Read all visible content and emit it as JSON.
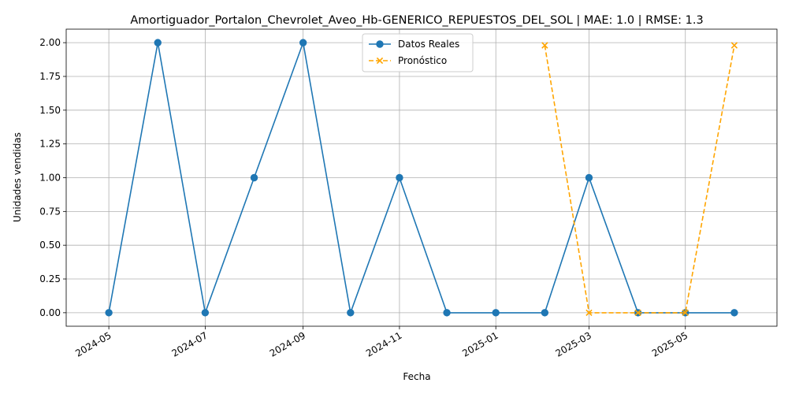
{
  "chart_data": {
    "type": "line",
    "title": "Amortiguador_Portalon_Chevrolet_Aveo_Hb-GENERICO_REPUESTOS_DEL_SOL | MAE: 1.0 | RMSE: 1.3",
    "xlabel": "Fecha",
    "ylabel": "Unidades vendidas",
    "xlim": [
      "2024-04-04",
      "2025-06-28"
    ],
    "ylim": [
      -0.1,
      2.1
    ],
    "x_ticks": [
      "2024-05",
      "2024-07",
      "2024-09",
      "2024-11",
      "2025-01",
      "2025-03",
      "2025-05"
    ],
    "y_ticks": [
      "0.00",
      "0.25",
      "0.50",
      "0.75",
      "1.00",
      "1.25",
      "1.50",
      "1.75",
      "2.00"
    ],
    "grid": true,
    "legend_position": "top-center",
    "series": [
      {
        "name": "Datos Reales",
        "color": "#1f77b4",
        "line_style": "solid",
        "marker": "circle",
        "x": [
          "2024-05-01",
          "2024-06-01",
          "2024-07-01",
          "2024-08-01",
          "2024-09-01",
          "2024-10-01",
          "2024-11-01",
          "2024-12-01",
          "2025-01-01",
          "2025-02-01",
          "2025-03-01",
          "2025-04-01",
          "2025-05-01",
          "2025-06-01"
        ],
        "values": [
          0,
          2,
          0,
          1,
          2,
          0,
          1,
          0,
          0,
          0,
          1,
          0,
          0,
          0
        ]
      },
      {
        "name": "Pronóstico",
        "color": "#ffa500",
        "line_style": "dashed",
        "marker": "x",
        "x": [
          "2025-02-01",
          "2025-03-01",
          "2025-04-01",
          "2025-05-01",
          "2025-06-01"
        ],
        "values": [
          1.98,
          0,
          0,
          0,
          1.98
        ]
      }
    ]
  }
}
